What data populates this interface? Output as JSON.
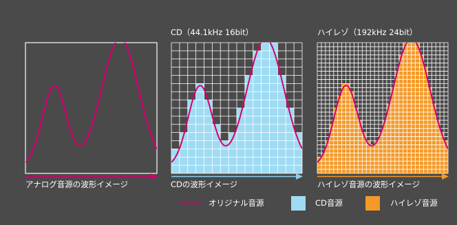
{
  "colors": {
    "background": "#4a4a4a",
    "original_wave": "#d4006e",
    "cd_fill": "#9fdcf4",
    "cd_arrow": "#8bd0ec",
    "hires_fill": "#f39a2a",
    "grid": "#ffffff"
  },
  "panels": {
    "analog": {
      "title": "",
      "caption": "アナログ音源の波形イメージ"
    },
    "cd": {
      "title": "CD（44.1kHz 16bit）",
      "caption": "CDの波形イメージ"
    },
    "hires": {
      "title": "ハイレゾ（192kHz 24bit）",
      "caption": "ハイレゾ音源の波形イメージ"
    }
  },
  "legend": {
    "items": [
      {
        "label": "オリジナル音源",
        "color": "#d4006e",
        "shape": "line"
      },
      {
        "label": "CD音源",
        "color": "#9fdcf4",
        "shape": "square"
      },
      {
        "label": "ハイレゾ音源",
        "color": "#f39a2a",
        "shape": "square"
      }
    ]
  }
}
